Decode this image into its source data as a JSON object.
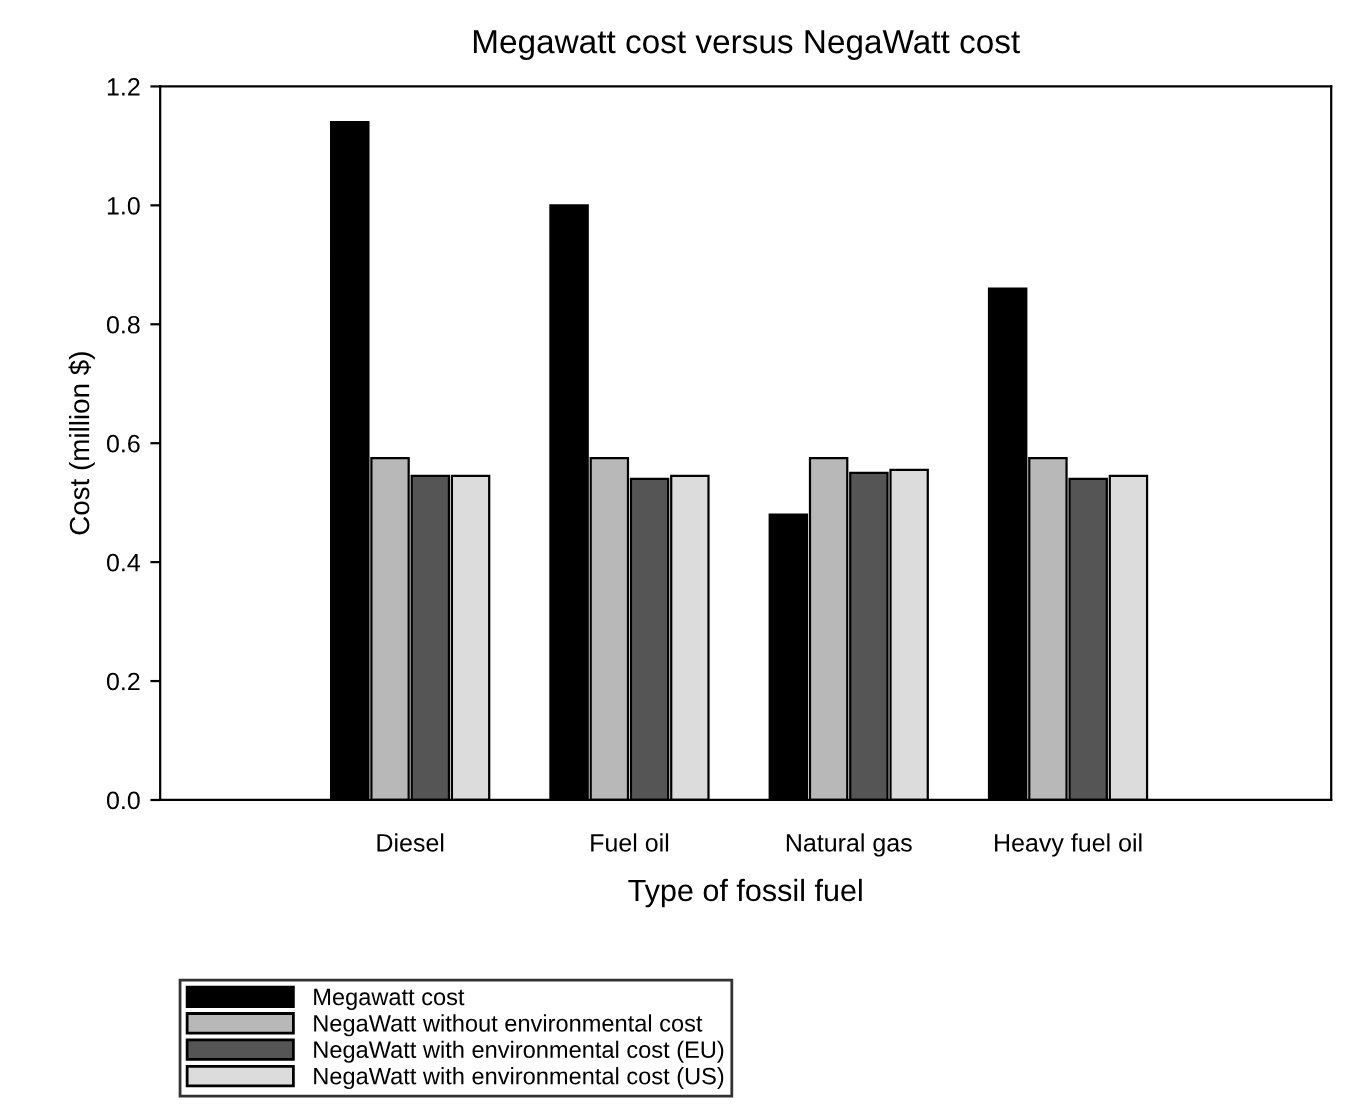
{
  "chart_data": {
    "type": "bar",
    "title": "Megawatt cost versus NegaWatt cost",
    "xlabel": "Type of fossil fuel",
    "ylabel": "Cost (million $)",
    "categories": [
      "Diesel",
      "Fuel oil",
      "Natural gas",
      "Heavy fuel oil"
    ],
    "series": [
      {
        "name": "Megawatt cost",
        "color": "#000000",
        "values": [
          1.14,
          1.0,
          0.48,
          0.86
        ]
      },
      {
        "name": "NegaWatt without environmental cost",
        "color": "#b8b8b8",
        "values": [
          0.575,
          0.575,
          0.575,
          0.575
        ]
      },
      {
        "name": "NegaWatt with environmental cost (EU)",
        "color": "#555555",
        "values": [
          0.545,
          0.54,
          0.55,
          0.54
        ]
      },
      {
        "name": "NegaWatt with environmental cost (US)",
        "color": "#dcdcdc",
        "values": [
          0.545,
          0.545,
          0.555,
          0.545
        ]
      }
    ],
    "ylim": [
      0,
      1.2
    ],
    "yticks": [
      {
        "value": 0,
        "label": "0.0"
      },
      {
        "value": 0.2,
        "label": "0.2"
      },
      {
        "value": 0.4,
        "label": "0.4"
      },
      {
        "value": 0.6,
        "label": "0.6"
      },
      {
        "value": 0.8,
        "label": "0.8"
      },
      {
        "value": 1.0,
        "label": "1.0"
      },
      {
        "value": 1.2,
        "label": "1.2"
      }
    ],
    "grid": false,
    "legend": "bottom"
  }
}
